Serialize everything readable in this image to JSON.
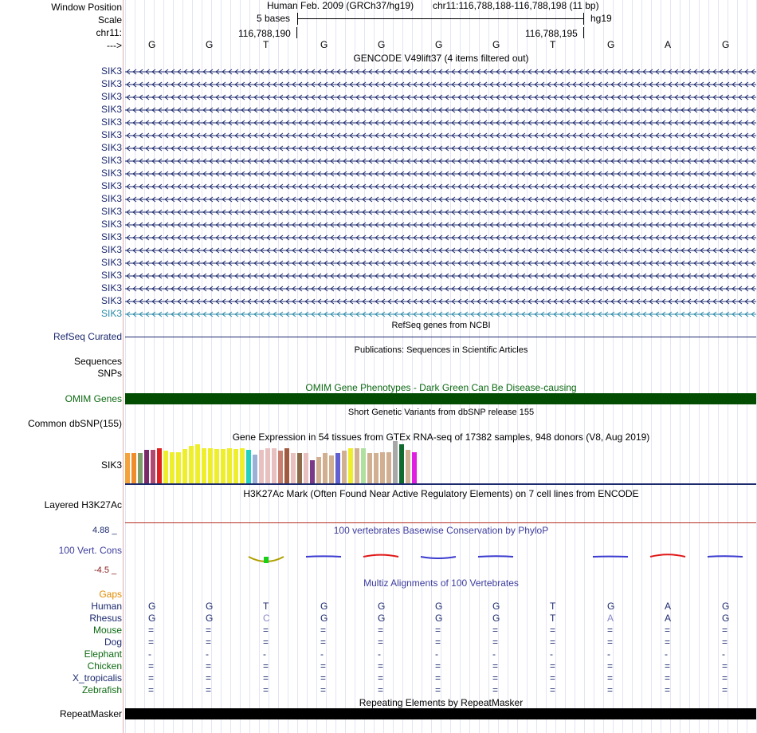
{
  "header": {
    "window_position_label": "Window Position",
    "scale_label": "Scale",
    "chrom_label": "chr11:",
    "arrow_label": "--->",
    "assembly": "Human Feb. 2009 (GRCh37/hg19)",
    "position": "chr11:116,788,188-116,788,198 (11 bp)",
    "scale_text": "5 bases",
    "db": "hg19",
    "coord_left": "116,788,190",
    "coord_right": "116,788,195",
    "bases": [
      "G",
      "G",
      "T",
      "G",
      "G",
      "G",
      "G",
      "T",
      "G",
      "A",
      "G"
    ]
  },
  "gencode": {
    "title": "GENCODE V49lift37 (4 items filtered out)",
    "gene": "SIK3",
    "count": 20,
    "color": "#1c2a6e",
    "last_color": "#2a8aa8"
  },
  "refseq": {
    "title": "RefSeq genes from NCBI",
    "label": "RefSeq Curated"
  },
  "pubs": {
    "title": "Publications: Sequences in Scientific Articles",
    "label1": "Sequences",
    "label2": "SNPs"
  },
  "omim": {
    "title": "OMIM Gene Phenotypes - Dark Green Can Be Disease-causing",
    "label": "OMIM Genes",
    "color": "#034d03"
  },
  "dbsnp": {
    "title": "Short Genetic Variants from dbSNP release 155",
    "label": "Common dbSNP(155)"
  },
  "gtex": {
    "title": "Gene Expression in 54 tissues from GTEx RNA-seq of 17382 samples, 948 donors (V8, Aug 2019)",
    "label": "SIK3",
    "bars": [
      {
        "c": "#f4a23c",
        "v": 0.72
      },
      {
        "c": "#f08c2a",
        "v": 0.72
      },
      {
        "c": "#7f9f6a",
        "v": 0.72
      },
      {
        "c": "#7a2a6a",
        "v": 0.79
      },
      {
        "c": "#b04a70",
        "v": 0.79
      },
      {
        "c": "#e02020",
        "v": 0.83
      },
      {
        "c": "#eeee2a",
        "v": 0.77
      },
      {
        "c": "#eeee2a",
        "v": 0.74
      },
      {
        "c": "#eeee2a",
        "v": 0.74
      },
      {
        "c": "#eeee2a",
        "v": 0.81
      },
      {
        "c": "#eeee2a",
        "v": 0.88
      },
      {
        "c": "#eeee2a",
        "v": 0.92
      },
      {
        "c": "#eeee2a",
        "v": 0.83
      },
      {
        "c": "#eeee2a",
        "v": 0.83
      },
      {
        "c": "#eeee2a",
        "v": 0.81
      },
      {
        "c": "#eeee2a",
        "v": 0.81
      },
      {
        "c": "#eeee2a",
        "v": 0.83
      },
      {
        "c": "#eeee2a",
        "v": 0.81
      },
      {
        "c": "#eeee2a",
        "v": 0.83
      },
      {
        "c": "#20d0c0",
        "v": 0.79
      },
      {
        "c": "#9ab0d8",
        "v": 0.68
      },
      {
        "c": "#e8c0c0",
        "v": 0.79
      },
      {
        "c": "#e8c0c0",
        "v": 0.83
      },
      {
        "c": "#e8c0c0",
        "v": 0.83
      },
      {
        "c": "#c88070",
        "v": 0.77
      },
      {
        "c": "#a05a40",
        "v": 0.83
      },
      {
        "c": "#e8c0c0",
        "v": 0.72
      },
      {
        "c": "#8a6a4a",
        "v": 0.72
      },
      {
        "c": "#e8c0c0",
        "v": 0.72
      },
      {
        "c": "#7a3a8a",
        "v": 0.55
      },
      {
        "c": "#d0b090",
        "v": 0.62
      },
      {
        "c": "#d0b090",
        "v": 0.72
      },
      {
        "c": "#d0b090",
        "v": 0.66
      },
      {
        "c": "#6060d0",
        "v": 0.72
      },
      {
        "c": "#d0b090",
        "v": 0.77
      },
      {
        "c": "#eeee2a",
        "v": 0.83
      },
      {
        "c": "#d0b090",
        "v": 0.83
      },
      {
        "c": "#b0e0a0",
        "v": 0.83
      },
      {
        "c": "#d0b090",
        "v": 0.72
      },
      {
        "c": "#d0b090",
        "v": 0.72
      },
      {
        "c": "#d0b090",
        "v": 0.74
      },
      {
        "c": "#d0b090",
        "v": 0.74
      },
      {
        "c": "#a8a8a8",
        "v": 1.0
      },
      {
        "c": "#106a30",
        "v": 0.92
      },
      {
        "c": "#d0b090",
        "v": 0.79
      },
      {
        "c": "#e020e0",
        "v": 0.74
      }
    ]
  },
  "h3k27ac": {
    "title": "H3K27Ac Mark (Often Found Near Active Regulatory Elements) on 7 cell lines from ENCODE",
    "label": "Layered H3K27Ac"
  },
  "phylop": {
    "title": "100 vertebrates Basewise Conservation by PhyloP",
    "label": "100 Vert. Cons",
    "max": "4.88 _",
    "min": "-4.5 _",
    "values": [
      0.0,
      0.0,
      -1.5,
      0.15,
      0.6,
      -0.5,
      0.2,
      0.0,
      0.1,
      0.7,
      0.2
    ]
  },
  "multiz": {
    "title": "Multiz Alignments of 100 Vertebrates",
    "gaps_label": "Gaps",
    "rows": [
      {
        "name": "Human",
        "color": "#1c2a6e",
        "bases": [
          "G",
          "G",
          "T",
          "G",
          "G",
          "G",
          "G",
          "T",
          "G",
          "A",
          "G"
        ]
      },
      {
        "name": "Rhesus",
        "color": "#1c2a6e",
        "bases": [
          "G",
          "G",
          "C",
          "G",
          "G",
          "G",
          "G",
          "T",
          "A",
          "A",
          "G"
        ]
      },
      {
        "name": "Mouse",
        "color": "#0d6a12",
        "bases": [
          "=",
          "=",
          "=",
          "=",
          "=",
          "=",
          "=",
          "=",
          "=",
          "=",
          "="
        ]
      },
      {
        "name": "Dog",
        "color": "#1c2a6e",
        "bases": [
          "=",
          "=",
          "=",
          "=",
          "=",
          "=",
          "=",
          "=",
          "=",
          "=",
          "="
        ]
      },
      {
        "name": "Elephant",
        "color": "#0d6a12",
        "bases": [
          "-",
          "-",
          "-",
          "-",
          "-",
          "-",
          "-",
          "-",
          "-",
          "-",
          "-"
        ]
      },
      {
        "name": "Chicken",
        "color": "#0d6a12",
        "bases": [
          "=",
          "=",
          "=",
          "=",
          "=",
          "=",
          "=",
          "=",
          "=",
          "=",
          "="
        ]
      },
      {
        "name": "X_tropicalis",
        "color": "#1c2a6e",
        "bases": [
          "=",
          "=",
          "=",
          "=",
          "=",
          "=",
          "=",
          "=",
          "=",
          "=",
          "="
        ]
      },
      {
        "name": "Zebrafish",
        "color": "#0d6a12",
        "bases": [
          "=",
          "=",
          "=",
          "=",
          "=",
          "=",
          "=",
          "=",
          "=",
          "=",
          "="
        ]
      }
    ]
  },
  "repeatmasker": {
    "title": "Repeating Elements by RepeatMasker",
    "label": "RepeatMasker"
  }
}
